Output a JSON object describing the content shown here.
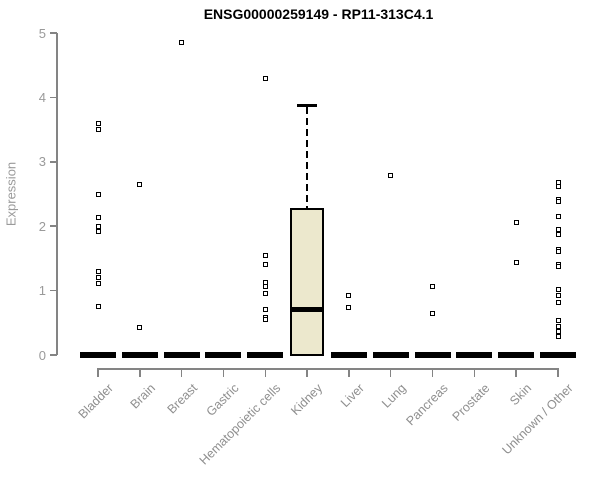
{
  "chart_data": {
    "type": "boxplot",
    "title": "ENSG00000259149 - RP11-313C4.1",
    "ylabel": "Expression",
    "ylim": [
      0,
      5
    ],
    "yticks": [
      "0",
      "1",
      "2",
      "3",
      "4",
      "5"
    ],
    "grid": false,
    "legend": null,
    "categories": [
      "Bladder",
      "Brain",
      "Breast",
      "Gastric",
      "Hematopoietic cells",
      "Kidney",
      "Liver",
      "Lung",
      "Pancreas",
      "Prostate",
      "Skin",
      "Unknown / Other"
    ],
    "boxes": [
      {
        "category": "Bladder",
        "q1": 0,
        "median": 0,
        "q3": 0,
        "whisker_low": 0,
        "whisker_high": 0,
        "collapsed": true
      },
      {
        "category": "Brain",
        "q1": 0,
        "median": 0,
        "q3": 0,
        "whisker_low": 0,
        "whisker_high": 0,
        "collapsed": true
      },
      {
        "category": "Breast",
        "q1": 0,
        "median": 0,
        "q3": 0,
        "whisker_low": 0,
        "whisker_high": 0,
        "collapsed": true
      },
      {
        "category": "Gastric",
        "q1": 0,
        "median": 0,
        "q3": 0,
        "whisker_low": 0,
        "whisker_high": 0,
        "collapsed": true
      },
      {
        "category": "Hematopoietic cells",
        "q1": 0,
        "median": 0,
        "q3": 0,
        "whisker_low": 0,
        "whisker_high": 0,
        "collapsed": true
      },
      {
        "category": "Kidney",
        "q1": 0,
        "median": 0.7,
        "q3": 2.28,
        "whisker_low": 0,
        "whisker_high": 3.88,
        "collapsed": false
      },
      {
        "category": "Liver",
        "q1": 0,
        "median": 0,
        "q3": 0,
        "whisker_low": 0,
        "whisker_high": 0,
        "collapsed": true
      },
      {
        "category": "Lung",
        "q1": 0,
        "median": 0,
        "q3": 0,
        "whisker_low": 0,
        "whisker_high": 0,
        "collapsed": true
      },
      {
        "category": "Pancreas",
        "q1": 0,
        "median": 0,
        "q3": 0,
        "whisker_low": 0,
        "whisker_high": 0,
        "collapsed": true
      },
      {
        "category": "Prostate",
        "q1": 0,
        "median": 0,
        "q3": 0,
        "whisker_low": 0,
        "whisker_high": 0,
        "collapsed": true
      },
      {
        "category": "Skin",
        "q1": 0,
        "median": 0,
        "q3": 0,
        "whisker_low": 0,
        "whisker_high": 0,
        "collapsed": true
      },
      {
        "category": "Unknown / Other",
        "q1": 0,
        "median": 0,
        "q3": 0,
        "whisker_low": 0,
        "whisker_high": 0,
        "collapsed": true
      }
    ],
    "points": [
      {
        "category": "Bladder",
        "values": [
          3.6,
          3.5,
          2.5,
          2.14,
          2.0,
          1.92,
          1.3,
          1.2,
          1.11,
          0.75
        ]
      },
      {
        "category": "Brain",
        "values": [
          2.64,
          0.43
        ]
      },
      {
        "category": "Breast",
        "values": [
          4.85
        ]
      },
      {
        "category": "Gastric",
        "values": []
      },
      {
        "category": "Hematopoietic cells",
        "values": [
          4.3,
          1.54,
          1.4,
          1.12,
          1.06,
          0.96,
          0.71,
          0.58,
          0.55
        ]
      },
      {
        "category": "Kidney",
        "values": []
      },
      {
        "category": "Liver",
        "values": [
          0.93,
          0.73
        ]
      },
      {
        "category": "Lung",
        "values": [
          2.78
        ]
      },
      {
        "category": "Pancreas",
        "values": [
          1.06,
          0.65
        ]
      },
      {
        "category": "Prostate",
        "values": []
      },
      {
        "category": "Skin",
        "values": [
          2.06,
          1.44
        ]
      },
      {
        "category": "Unknown / Other",
        "values": [
          2.68,
          2.61,
          2.42,
          2.39,
          2.15,
          1.95,
          1.87,
          1.64,
          1.61,
          1.41,
          1.38,
          1.01,
          0.93,
          0.82,
          0.54,
          0.45,
          0.37,
          0.28
        ]
      }
    ],
    "colors": {
      "box_fill": "#ece8cd",
      "box_border": "#000000",
      "median": "#000000",
      "point": "#000000",
      "axis": "#848484",
      "tick_label": "#9a9a9a",
      "title": "#000000"
    }
  }
}
